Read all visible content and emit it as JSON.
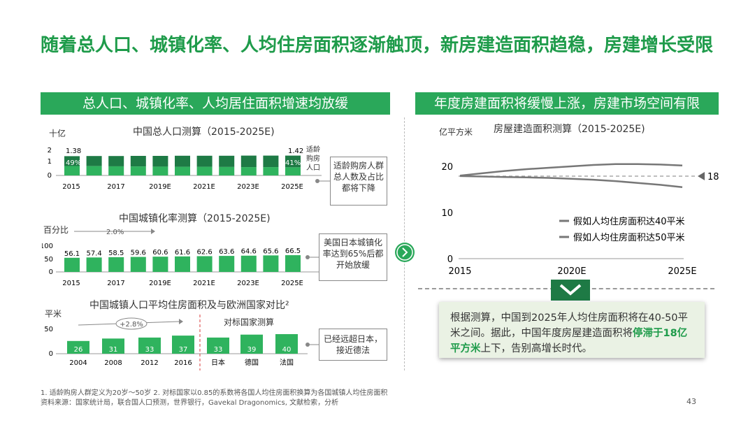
{
  "slide": {
    "title": "随着总人口、城镇化率、人均住房面积逐渐触顶，新房建造面积趋稳，房建增长受限",
    "left_banner": "总人口、城镇化率、人均居住面积增速均放缓",
    "right_banner": "年度房建面积将缓慢上涨，房建市场空间有限",
    "footnote_1": "1. 适龄购房人群定义为20岁～50岁  2. 对标国家以0.85的系数将各国人均住房面积换算为各国城镇人均住房面积",
    "footnote_2": "资料来源：国家统计局，联合国人口预测，世界银行，Gavekal Dragonomics, 文献检索，分析",
    "page_number": "43",
    "summary_part1": "根据测算，中国到2025年人均住房面积将在40-50平米之间。据此，中国年度房屋建造面积将",
    "summary_highlight": "停滞于18亿平方米",
    "summary_part2": "上下，告别高增长时代。",
    "colors": {
      "brand_green": "#1e9b4a",
      "banner_green": "#2aa85a",
      "bar_light": "#2fb35e",
      "bar_dark": "#1e7a45",
      "line_gray": "#777777"
    }
  },
  "population": {
    "title": "中国总人口测算（2015-2025E)",
    "unit": "十亿",
    "yticks": [
      "2",
      "1",
      "0"
    ],
    "first_value": "1.38",
    "first_pct": "49%",
    "last_value": "1.42",
    "last_pct": "41%",
    "side_label": "适龄购房人口",
    "xlabels": [
      "2015",
      "2017",
      "2019E",
      "2021E",
      "2023E",
      "2025E"
    ],
    "callout": "适龄购房人群总人数及占比都将下降"
  },
  "urbanization": {
    "title": "中国城镇化率测算（2015-2025E)",
    "unit": "百分比",
    "growth_label": "2.0%",
    "yticks": [
      "100",
      "50",
      "0"
    ],
    "xlabels": [
      "2015",
      "2017",
      "2019E",
      "2021E",
      "2023E",
      "2025E"
    ],
    "callout": "美国日本城镇化率达到65%后都开始放缓"
  },
  "living_area": {
    "title": "中国城镇人口平均住房面积及与欧洲国家对比²",
    "unit": "平米",
    "growth_label": "+2.8%",
    "benchmark_label": "对标国家测算",
    "yticks": [
      "50",
      "0"
    ],
    "callout": "已经远超日本，接近德法"
  },
  "construction": {
    "title": "房屋建造面积测算（2015-2025E)",
    "unit": "亿平方米",
    "yticks": [
      "20",
      "10",
      "0"
    ],
    "xlabels": [
      "2015",
      "2020E",
      "2025E"
    ],
    "marker_label": "18"
  },
  "chart_data": [
    {
      "type": "bar",
      "title": "中国总人口测算（2015-2025E)",
      "ylabel": "十亿",
      "ylim": [
        0,
        2
      ],
      "categories": [
        "2015",
        "2016",
        "2017",
        "2018",
        "2019E",
        "2020E",
        "2021E",
        "2022E",
        "2023E",
        "2024E",
        "2025E"
      ],
      "values": [
        1.38,
        1.39,
        1.39,
        1.4,
        1.4,
        1.41,
        1.41,
        1.41,
        1.42,
        1.42,
        1.42
      ],
      "share_pct": [
        49,
        48,
        47,
        46,
        45,
        44,
        44,
        43,
        42,
        42,
        41
      ],
      "labeled_values": {
        "2015": 1.38,
        "2025E": 1.42
      },
      "labeled_share": {
        "2015": "49%",
        "2025E": "41%"
      }
    },
    {
      "type": "bar",
      "title": "中国城镇化率测算（2015-2025E)",
      "ylabel": "百分比",
      "ylim": [
        0,
        100
      ],
      "categories": [
        "2015",
        "2016",
        "2017",
        "2018",
        "2019E",
        "2020E",
        "2021E",
        "2022E",
        "2023E",
        "2024E",
        "2025E"
      ],
      "values": [
        56.1,
        57.4,
        58.5,
        59.6,
        60.6,
        61.6,
        62.6,
        63.6,
        64.6,
        65.6,
        66.5
      ]
    },
    {
      "type": "bar",
      "title": "中国城镇人口平均住房面积及与欧洲国家对比²",
      "ylabel": "平米",
      "ylim": [
        0,
        50
      ],
      "categories": [
        "2004",
        "2008",
        "2012",
        "2016",
        "日本",
        "德国",
        "法国"
      ],
      "values": [
        26,
        31,
        33,
        37,
        33,
        39,
        40
      ]
    },
    {
      "type": "line",
      "title": "房屋建造面积测算（2015-2025E)",
      "ylabel": "亿平方米",
      "ylim": [
        0,
        25
      ],
      "x": [
        2015,
        2016,
        2017,
        2018,
        2019,
        2020,
        2021,
        2022,
        2023,
        2024,
        2025
      ],
      "xticks": [
        "2015",
        "2020E",
        "2025E"
      ],
      "series": [
        {
          "name": "假如人均住房面积达40平米",
          "values": [
            18.0,
            18.5,
            19.0,
            19.4,
            19.7,
            20.0,
            20.3,
            20.5,
            20.5,
            20.4,
            20.2
          ]
        },
        {
          "name": "假如人均住房面积达50平米",
          "values": [
            17.9,
            17.8,
            17.7,
            17.6,
            17.5,
            17.3,
            17.1,
            16.8,
            16.4,
            16.0,
            15.5
          ]
        }
      ],
      "reference_line": 18
    }
  ]
}
